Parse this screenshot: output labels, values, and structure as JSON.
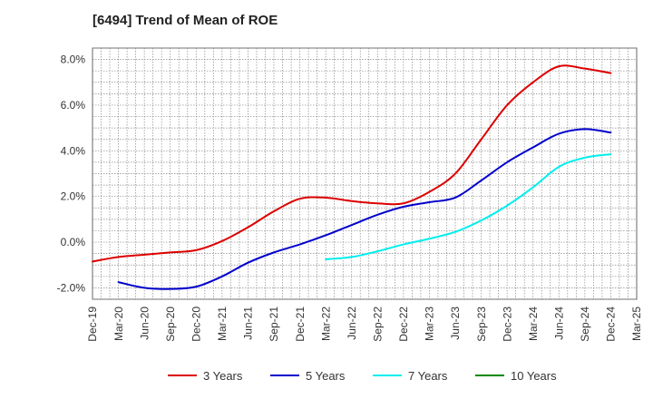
{
  "chart_data": {
    "type": "line",
    "title": "[6494]  Trend of Mean of ROE",
    "xlabel": "",
    "ylabel": "",
    "x_ticks": [
      "Dec-19",
      "Mar-20",
      "Jun-20",
      "Sep-20",
      "Dec-20",
      "Mar-21",
      "Jun-21",
      "Sep-21",
      "Dec-21",
      "Mar-22",
      "Jun-22",
      "Sep-22",
      "Dec-22",
      "Mar-23",
      "Jun-23",
      "Sep-23",
      "Dec-23",
      "Mar-24",
      "Jun-24",
      "Sep-24",
      "Dec-24",
      "Mar-25"
    ],
    "y_ticks": [
      "8.0%",
      "6.0%",
      "4.0%",
      "2.0%",
      "0.0%",
      "-2.0%"
    ],
    "y_tick_values": [
      8,
      6,
      4,
      2,
      0,
      -2
    ],
    "ylim": [
      -2.5,
      8.5
    ],
    "grid": true,
    "legend_position": "bottom",
    "series": [
      {
        "name": "3 Years",
        "color": "#dd0000",
        "x": [
          "Dec-19",
          "Mar-20",
          "Jun-20",
          "Sep-20",
          "Dec-20",
          "Mar-21",
          "Jun-21",
          "Sep-21",
          "Dec-21",
          "Mar-22",
          "Jun-22",
          "Sep-22",
          "Dec-22",
          "Mar-23",
          "Jun-23",
          "Sep-23",
          "Dec-23",
          "Mar-24",
          "Jun-24",
          "Sep-24",
          "Dec-24"
        ],
        "values": [
          -0.85,
          -0.65,
          -0.55,
          -0.45,
          -0.35,
          0.05,
          0.65,
          1.35,
          1.9,
          1.95,
          1.8,
          1.7,
          1.7,
          2.2,
          3.0,
          4.5,
          6.0,
          7.0,
          7.7,
          7.6,
          7.4
        ]
      },
      {
        "name": "5 Years",
        "color": "#0000cc",
        "x": [
          "Mar-20",
          "Jun-20",
          "Sep-20",
          "Dec-20",
          "Mar-21",
          "Jun-21",
          "Sep-21",
          "Dec-21",
          "Mar-22",
          "Jun-22",
          "Sep-22",
          "Dec-22",
          "Mar-23",
          "Jun-23",
          "Sep-23",
          "Dec-23",
          "Mar-24",
          "Jun-24",
          "Sep-24",
          "Dec-24"
        ],
        "values": [
          -1.75,
          -2.0,
          -2.05,
          -1.95,
          -1.5,
          -0.9,
          -0.45,
          -0.1,
          0.3,
          0.75,
          1.2,
          1.55,
          1.75,
          1.95,
          2.7,
          3.5,
          4.15,
          4.75,
          4.95,
          4.8
        ]
      },
      {
        "name": "7 Years",
        "color": "#00eeee",
        "x": [
          "Mar-22",
          "Jun-22",
          "Sep-22",
          "Dec-22",
          "Mar-23",
          "Jun-23",
          "Sep-23",
          "Dec-23",
          "Mar-24",
          "Jun-24",
          "Sep-24",
          "Dec-24"
        ],
        "values": [
          -0.75,
          -0.65,
          -0.4,
          -0.1,
          0.15,
          0.45,
          0.95,
          1.6,
          2.4,
          3.3,
          3.7,
          3.85
        ]
      },
      {
        "name": "10 Years",
        "color": "#008800",
        "x": [],
        "values": []
      }
    ]
  }
}
